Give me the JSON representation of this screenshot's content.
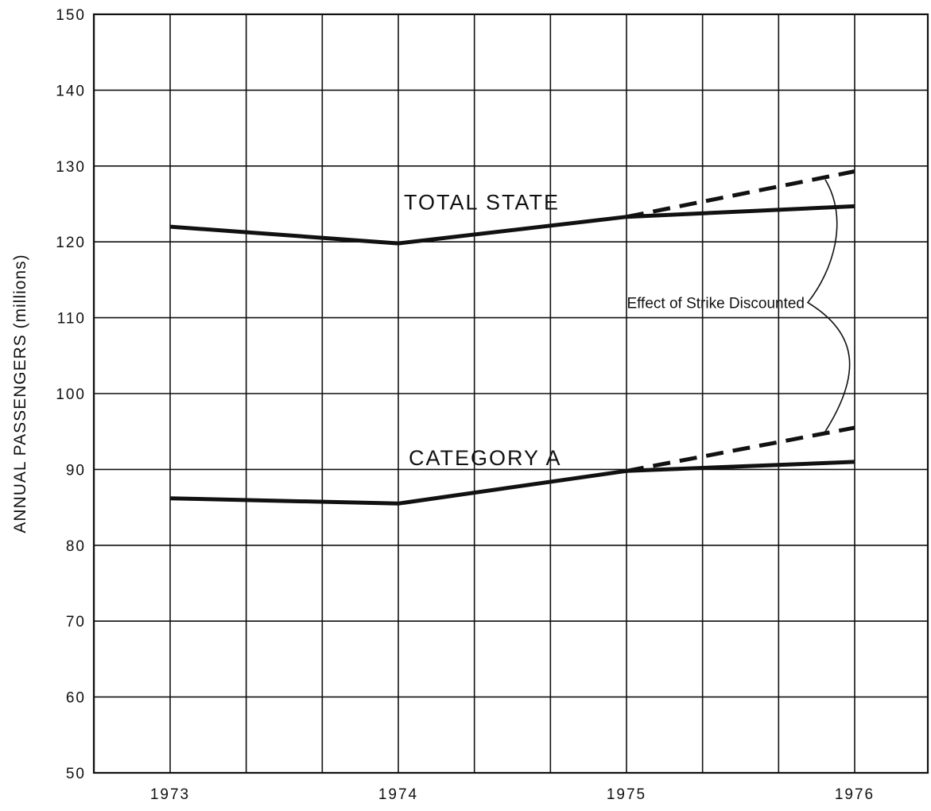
{
  "chart_data": {
    "type": "line",
    "title": "",
    "xlabel": "",
    "ylabel": "ANNUAL PASSENGERS (millions)",
    "x_categories": [
      "1973",
      "1974",
      "1975",
      "1976"
    ],
    "x_minor_divisions": 3,
    "ylim": [
      50,
      150
    ],
    "y_ticks": [
      50,
      60,
      70,
      80,
      90,
      100,
      110,
      120,
      130,
      140,
      150
    ],
    "grid": true,
    "series": [
      {
        "name": "TOTAL STATE",
        "style": "solid",
        "points": [
          [
            1973,
            122.0
          ],
          [
            1974,
            119.8
          ],
          [
            1975,
            123.3
          ],
          [
            1976,
            124.7
          ]
        ]
      },
      {
        "name": "TOTAL STATE",
        "style": "dashed",
        "points": [
          [
            1975,
            123.3
          ],
          [
            1976,
            129.3
          ]
        ]
      },
      {
        "name": "CATEGORY A",
        "style": "solid",
        "points": [
          [
            1973,
            86.2
          ],
          [
            1974,
            85.5
          ],
          [
            1975,
            89.8
          ],
          [
            1976,
            91.0
          ]
        ]
      },
      {
        "name": "CATEGORY A",
        "style": "dashed",
        "points": [
          [
            1975,
            89.8
          ],
          [
            1976,
            95.5
          ]
        ]
      }
    ],
    "annotations": [
      {
        "text": "Effect of Strike Discounted"
      }
    ],
    "colors": {
      "line": "#111111",
      "grid": "#111111",
      "background": "#ffffff"
    }
  }
}
